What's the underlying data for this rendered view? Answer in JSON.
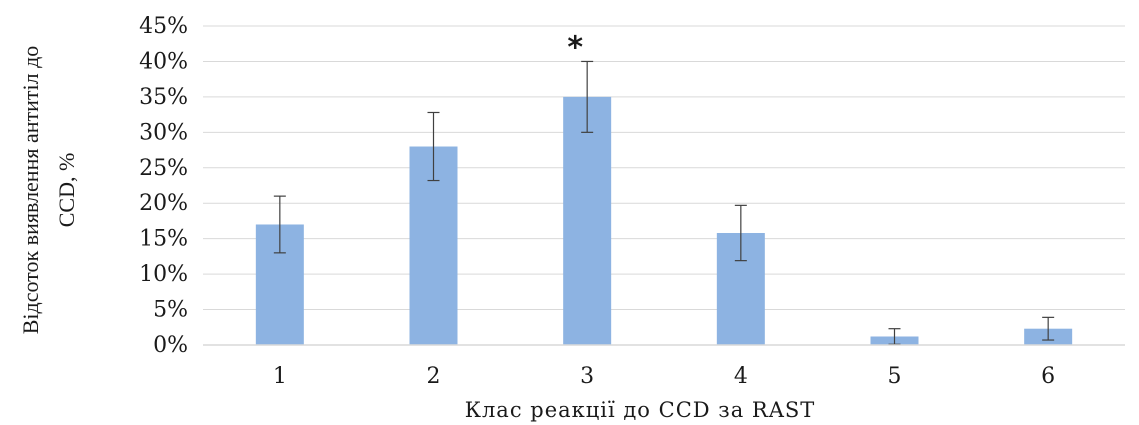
{
  "chart_data": {
    "type": "bar",
    "categories": [
      "1",
      "2",
      "3",
      "4",
      "5",
      "6"
    ],
    "values": [
      17,
      28,
      35,
      15.8,
      1.2,
      2.3
    ],
    "error": [
      4,
      4.8,
      5,
      3.9,
      1.1,
      1.6
    ],
    "ylim": [
      0,
      45
    ],
    "yticks": [
      0,
      5,
      10,
      15,
      20,
      25,
      30,
      35,
      40,
      45
    ],
    "ytick_labels": [
      "0%",
      "5%",
      "10%",
      "15%",
      "20%",
      "25%",
      "30%",
      "35%",
      "40%",
      "45%"
    ],
    "xlabel": "Клас реакції до CCD за RAST",
    "ylabel_line1": "Відсоток виявлення антитіл до",
    "ylabel_line2": "CCD, %",
    "annotation": {
      "text": "*",
      "category_index": 2
    },
    "grid": true,
    "bar_color": "#8db3e2",
    "grid_color": "#d9d9d9",
    "error_color": "#404040"
  }
}
